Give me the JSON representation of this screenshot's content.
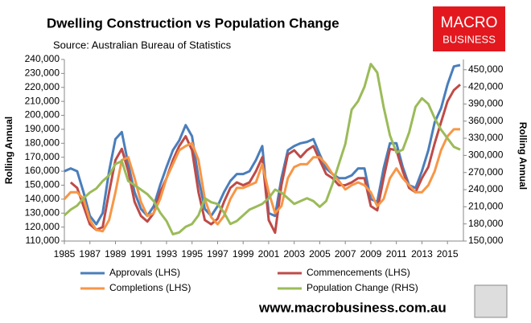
{
  "chart_data": {
    "type": "line",
    "title": "Dwelling Construction vs Population Change",
    "subtitle": "Source: Australian Bureau of Statistics",
    "ylabel": "Rolling Annual",
    "y2label": "Rolling Annual",
    "x": [
      1985,
      1985.5,
      1986,
      1986.5,
      1987,
      1987.5,
      1988,
      1988.5,
      1989,
      1989.5,
      1990,
      1990.5,
      1991,
      1991.5,
      1992,
      1992.5,
      1993,
      1993.5,
      1994,
      1994.5,
      1995,
      1995.5,
      1996,
      1996.5,
      1997,
      1997.5,
      1998,
      1998.5,
      1999,
      1999.5,
      2000,
      2000.5,
      2001,
      2001.5,
      2002,
      2002.5,
      2003,
      2003.5,
      2004,
      2004.5,
      2005,
      2005.5,
      2006,
      2006.5,
      2007,
      2007.5,
      2008,
      2008.5,
      2009,
      2009.5,
      2010,
      2010.5,
      2011,
      2011.5,
      2012,
      2012.5,
      2013,
      2013.5,
      2014,
      2014.5,
      2015,
      2015.5,
      2016
    ],
    "xlim": [
      1985,
      2016.25
    ],
    "xticks": [
      1985,
      1987,
      1989,
      1991,
      1993,
      1995,
      1997,
      1999,
      2001,
      2003,
      2005,
      2007,
      2009,
      2011,
      2013,
      2015
    ],
    "ylim": [
      110000,
      240000
    ],
    "yticks": [
      {
        "value": 110000,
        "label": "110,000"
      },
      {
        "value": 120000,
        "label": "120,000"
      },
      {
        "value": 130000,
        "label": "130,000"
      },
      {
        "value": 140000,
        "label": "140,000"
      },
      {
        "value": 150000,
        "label": "150,000"
      },
      {
        "value": 160000,
        "label": "160,000"
      },
      {
        "value": 170000,
        "label": "170,000"
      },
      {
        "value": 180000,
        "label": "180,000"
      },
      {
        "value": 190000,
        "label": "190,000"
      },
      {
        "value": 200000,
        "label": "200,000"
      },
      {
        "value": 210000,
        "label": "210,000"
      },
      {
        "value": 220000,
        "label": "220,000"
      },
      {
        "value": 230000,
        "label": "230,000"
      },
      {
        "value": 240000,
        "label": "240,000"
      }
    ],
    "y2lim": [
      150000,
      468000
    ],
    "y2ticks": [
      {
        "value": 150000,
        "label": "150,000"
      },
      {
        "value": 180000,
        "label": "180,000"
      },
      {
        "value": 210000,
        "label": "210,000"
      },
      {
        "value": 240000,
        "label": "240,000"
      },
      {
        "value": 270000,
        "label": "270,000"
      },
      {
        "value": 300000,
        "label": "300,000"
      },
      {
        "value": 330000,
        "label": "330,000"
      },
      {
        "value": 360000,
        "label": "360,000"
      },
      {
        "value": 390000,
        "label": "390,000"
      },
      {
        "value": 420000,
        "label": "420,000"
      },
      {
        "value": 450000,
        "label": "450,000"
      }
    ],
    "series": [
      {
        "name": "Approvals (LHS)",
        "color": "#4a7ebb",
        "values": [
          160000,
          162000,
          160000,
          145000,
          128000,
          122000,
          130000,
          160000,
          183000,
          188000,
          165000,
          145000,
          133000,
          128000,
          135000,
          150000,
          163000,
          175000,
          182000,
          193000,
          185000,
          155000,
          133000,
          128000,
          135000,
          145000,
          153000,
          158000,
          158000,
          160000,
          168000,
          178000,
          130000,
          128000,
          155000,
          175000,
          178000,
          180000,
          181000,
          183000,
          172000,
          162000,
          158000,
          155000,
          155000,
          157000,
          162000,
          162000,
          140000,
          138000,
          162000,
          180000,
          180000,
          163000,
          150000,
          148000,
          160000,
          175000,
          195000,
          205000,
          222000,
          235000,
          236000
        ]
      },
      {
        "name": "Commencements (LHS)",
        "color": "#be4b48",
        "values": [
          null,
          152000,
          148000,
          135000,
          122000,
          118000,
          120000,
          145000,
          168000,
          176000,
          160000,
          138000,
          128000,
          124000,
          130000,
          145000,
          155000,
          168000,
          178000,
          185000,
          175000,
          145000,
          125000,
          122000,
          126000,
          138000,
          148000,
          152000,
          150000,
          152000,
          160000,
          170000,
          125000,
          116000,
          150000,
          172000,
          175000,
          170000,
          175000,
          178000,
          168000,
          158000,
          155000,
          150000,
          150000,
          152000,
          155000,
          155000,
          135000,
          132000,
          155000,
          176000,
          175000,
          160000,
          148000,
          145000,
          155000,
          163000,
          180000,
          195000,
          210000,
          218000,
          222000
        ]
      },
      {
        "name": "Completions (LHS)",
        "color": "#f79646",
        "values": [
          140000,
          145000,
          145000,
          140000,
          125000,
          118000,
          117000,
          125000,
          145000,
          168000,
          170000,
          155000,
          138000,
          128000,
          130000,
          140000,
          155000,
          165000,
          175000,
          178000,
          180000,
          168000,
          140000,
          127000,
          122000,
          128000,
          140000,
          148000,
          148000,
          150000,
          152000,
          165000,
          145000,
          130000,
          135000,
          155000,
          163000,
          165000,
          165000,
          170000,
          170000,
          165000,
          158000,
          153000,
          147000,
          150000,
          152000,
          150000,
          145000,
          135000,
          140000,
          155000,
          162000,
          155000,
          150000,
          145000,
          145000,
          150000,
          160000,
          175000,
          185000,
          190000,
          190000
        ]
      },
      {
        "name": "Population Change (RHS)",
        "color": "#9bbb59",
        "axis": "y2",
        "values": [
          195000,
          205000,
          212000,
          225000,
          235000,
          242000,
          255000,
          265000,
          285000,
          290000,
          255000,
          248000,
          240000,
          232000,
          220000,
          200000,
          185000,
          162000,
          165000,
          175000,
          180000,
          195000,
          225000,
          218000,
          215000,
          200000,
          180000,
          185000,
          195000,
          205000,
          210000,
          215000,
          225000,
          240000,
          235000,
          225000,
          215000,
          220000,
          225000,
          220000,
          210000,
          220000,
          250000,
          285000,
          320000,
          380000,
          395000,
          420000,
          460000,
          445000,
          385000,
          335000,
          305000,
          310000,
          340000,
          385000,
          400000,
          390000,
          365000,
          345000,
          330000,
          315000,
          310000
        ]
      }
    ]
  },
  "logo": {
    "line1": "MACRO",
    "line2": "BUSINESS"
  },
  "website": "www.macrobusiness.com.au"
}
